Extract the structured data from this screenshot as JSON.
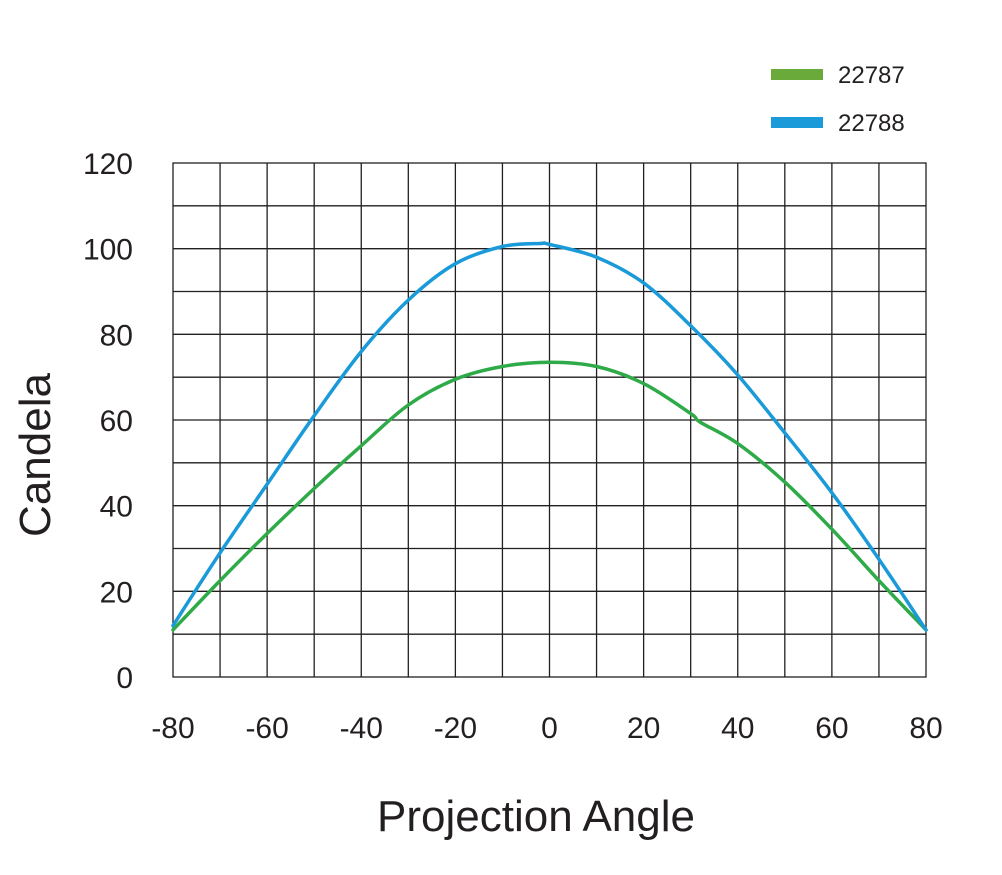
{
  "chart_data": {
    "type": "line",
    "xlabel": "Projection Angle",
    "ylabel": "Candela",
    "xlim": [
      -80,
      80
    ],
    "ylim": [
      0,
      120
    ],
    "x_ticks": [
      -80,
      -60,
      -40,
      -20,
      0,
      20,
      40,
      60,
      80
    ],
    "y_ticks": [
      0,
      20,
      40,
      60,
      80,
      100,
      120
    ],
    "grid": true,
    "legend_position": "top-right",
    "series": [
      {
        "name": "22787",
        "color": "#2eab48",
        "legend_color": "#6aaa3a",
        "x": [
          -80,
          -70,
          -60,
          -50,
          -40,
          -30,
          -20,
          -10,
          0,
          10,
          20,
          30,
          32,
          40,
          50,
          60,
          70,
          80
        ],
        "y": [
          11,
          22.5,
          33.5,
          44,
          54,
          63.5,
          69.5,
          72.5,
          73.5,
          72.5,
          68.5,
          61.5,
          59.5,
          54.5,
          45.5,
          34.5,
          22.5,
          11
        ]
      },
      {
        "name": "22788",
        "color": "#1a9ad8",
        "legend_color": "#1a9ad8",
        "x": [
          -80,
          -70,
          -60,
          -50,
          -40,
          -30,
          -20,
          -10,
          -2,
          0,
          10,
          20,
          30,
          40,
          50,
          60,
          70,
          80
        ],
        "y": [
          12,
          29,
          45,
          61,
          76,
          88,
          96.5,
          100.5,
          101.2,
          101,
          98,
          92,
          82,
          70.5,
          57,
          43,
          27.5,
          11
        ]
      }
    ]
  }
}
